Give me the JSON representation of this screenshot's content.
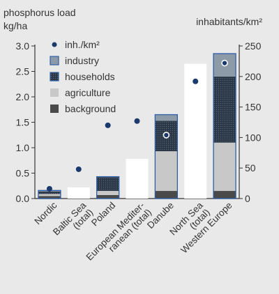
{
  "chart_data": {
    "type": "bar",
    "stacked": true,
    "categories": [
      [
        "Nordic"
      ],
      [
        "Baltic Sea",
        "(total)"
      ],
      [
        "Poland"
      ],
      [
        "European Mediter-",
        "ranean (total)"
      ],
      [
        "Danube"
      ],
      [
        "North Sea",
        "(total)"
      ],
      [
        "Western Europe"
      ]
    ],
    "left_axis": {
      "title_lines": [
        "phosphorus load",
        "kg/ha"
      ],
      "range": [
        0,
        3.0
      ],
      "ticks": [
        0.0,
        0.5,
        1.0,
        1.5,
        2.0,
        2.5,
        3.0
      ],
      "tick_labels": [
        "0.0",
        "0.5",
        "1.0",
        "1.5",
        "2.0",
        "2.5",
        "3.0"
      ]
    },
    "right_axis": {
      "title": "inhabitants/km²",
      "range": [
        0,
        250
      ],
      "ticks": [
        0,
        50,
        100,
        150,
        200,
        250
      ],
      "tick_labels": [
        "0",
        "50",
        "100",
        "150",
        "200",
        "250"
      ]
    },
    "series": [
      {
        "name": "background",
        "color": "#4a4a4a",
        "values": [
          0.05,
          null,
          0.07,
          null,
          0.15,
          null,
          0.15
        ]
      },
      {
        "name": "agriculture",
        "color": "#c8c8c8",
        "values": [
          0.04,
          null,
          0.08,
          null,
          0.78,
          null,
          0.95
        ]
      },
      {
        "name": "households",
        "color": "#2c3846",
        "values": [
          0.05,
          null,
          0.27,
          null,
          0.6,
          null,
          1.3
        ]
      },
      {
        "name": "industry",
        "color": "#8d9aa8",
        "values": [
          0.02,
          null,
          0.01,
          null,
          0.12,
          null,
          0.45
        ]
      }
    ],
    "totals_only": [
      null,
      0.22,
      null,
      0.78,
      null,
      2.65,
      null
    ],
    "density": {
      "name": "inh./km²",
      "color": "#1a3a6e",
      "values": [
        16,
        48,
        120,
        127,
        104,
        192,
        222
      ]
    },
    "legend_order": [
      "inh./km²",
      "industry",
      "households",
      "agriculture",
      "background"
    ],
    "legend_position": "top-left"
  }
}
